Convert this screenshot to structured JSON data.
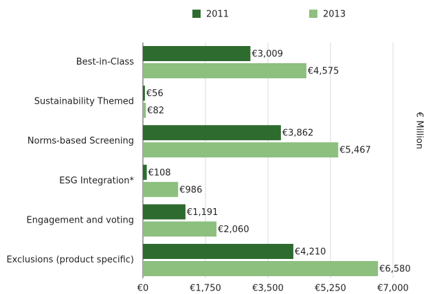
{
  "chart_data": {
    "type": "bar",
    "orientation": "horizontal",
    "categories": [
      "Best-in-Class",
      "Sustainability Themed",
      "Norms-based Screening",
      "ESG Integration*",
      "Engagement and voting",
      "Exclusions (product specific)"
    ],
    "series": [
      {
        "name": "2011",
        "color": "#2e6b2f",
        "values": [
          3009,
          56,
          3862,
          108,
          1191,
          4210
        ],
        "value_labels": [
          "€3,009",
          "€56",
          "€3,862",
          "€108",
          "€1,191",
          "€4,210"
        ]
      },
      {
        "name": "2013",
        "color": "#8dbf7f",
        "values": [
          4575,
          82,
          5467,
          986,
          2060,
          6580
        ],
        "value_labels": [
          "€4,575",
          "€82",
          "€5,467",
          "€986",
          "€2,060",
          "€6,580"
        ]
      }
    ],
    "xlim": [
      0,
      7000
    ],
    "xticks": [
      {
        "value": 0,
        "label": "€0"
      },
      {
        "value": 1750,
        "label": "€1,750"
      },
      {
        "value": 3500,
        "label": "€3,500"
      },
      {
        "value": 5250,
        "label": "€5,250"
      },
      {
        "value": 7000,
        "label": "€7,000"
      }
    ],
    "axis_label": "€ Million",
    "grid": true,
    "legend": "top"
  }
}
